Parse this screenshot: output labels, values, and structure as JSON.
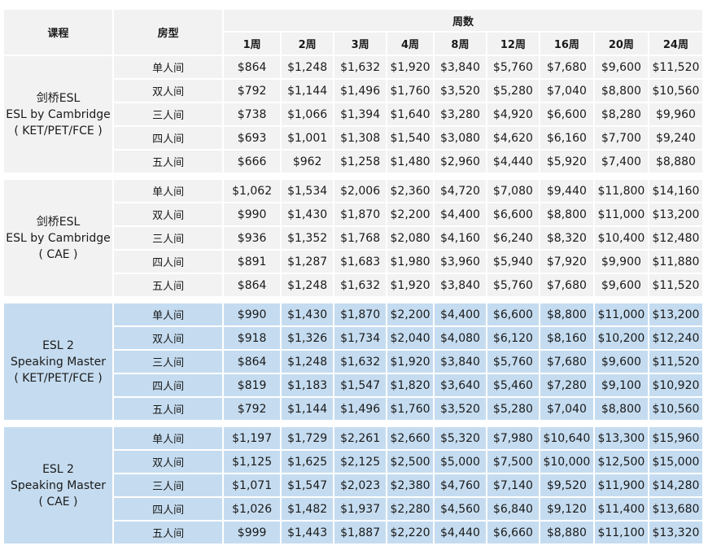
{
  "header": {
    "course_label": "课程",
    "room_label": "房型",
    "weeks_label": "周数",
    "weeks": [
      "1周",
      "2周",
      "3周",
      "4周",
      "8周",
      "12周",
      "16周",
      "20周",
      "24周"
    ]
  },
  "room_types": [
    "单人间",
    "双人间",
    "三人间",
    "四人间",
    "五人间"
  ],
  "groups": [
    {
      "course_lines": [
        "剑桥ESL",
        "ESL by Cambridge",
        "( KET/PET/FCE )"
      ],
      "rows": [
        [
          "$864",
          "$1,248",
          "$1,632",
          "$1,920",
          "$3,840",
          "$5,760",
          "$7,680",
          "$9,600",
          "$11,520"
        ],
        [
          "$792",
          "$1,144",
          "$1,496",
          "$1,760",
          "$3,520",
          "$5,280",
          "$7,040",
          "$8,800",
          "$10,560"
        ],
        [
          "$738",
          "$1,066",
          "$1,394",
          "$1,640",
          "$3,280",
          "$4,920",
          "$6,600",
          "$8,280",
          "$9,960"
        ],
        [
          "$693",
          "$1,001",
          "$1,308",
          "$1,540",
          "$3,080",
          "$4,620",
          "$6,160",
          "$7,700",
          "$9,240"
        ],
        [
          "$666",
          "$962",
          "$1,258",
          "$1,480",
          "$2,960",
          "$4,440",
          "$5,920",
          "$7,400",
          "$8,880"
        ]
      ]
    },
    {
      "course_lines": [
        "剑桥ESL",
        "ESL by Cambridge",
        "( CAE )"
      ],
      "rows": [
        [
          "$1,062",
          "$1,534",
          "$2,006",
          "$2,360",
          "$4,720",
          "$7,080",
          "$9,440",
          "$11,800",
          "$14,160"
        ],
        [
          "$990",
          "$1,430",
          "$1,870",
          "$2,200",
          "$4,400",
          "$6,600",
          "$8,800",
          "$11,000",
          "$13,200"
        ],
        [
          "$936",
          "$1,352",
          "$1,768",
          "$2,080",
          "$4,160",
          "$6,240",
          "$8,320",
          "$10,400",
          "$12,480"
        ],
        [
          "$891",
          "$1,287",
          "$1,683",
          "$1,980",
          "$3,960",
          "$5,940",
          "$7,920",
          "$9,900",
          "$11,880"
        ],
        [
          "$864",
          "$1,248",
          "$1,632",
          "$1,920",
          "$3,840",
          "$5,760",
          "$7,680",
          "$9,600",
          "$11,520"
        ]
      ]
    },
    {
      "course_lines": [
        "ESL 2",
        "Speaking Master",
        "( KET/PET/FCE )"
      ],
      "rows": [
        [
          "$990",
          "$1,430",
          "$1,870",
          "$2,200",
          "$4,400",
          "$6,600",
          "$8,800",
          "$11,000",
          "$13,200"
        ],
        [
          "$918",
          "$1,326",
          "$1,734",
          "$2,040",
          "$4,080",
          "$6,120",
          "$8,160",
          "$10,200",
          "$12,240"
        ],
        [
          "$864",
          "$1,248",
          "$1,632",
          "$1,920",
          "$3,840",
          "$5,760",
          "$7,680",
          "$9,600",
          "$11,520"
        ],
        [
          "$819",
          "$1,183",
          "$1,547",
          "$1,820",
          "$3,640",
          "$5,460",
          "$7,280",
          "$9,100",
          "$10,920"
        ],
        [
          "$792",
          "$1,144",
          "$1,496",
          "$1,760",
          "$3,520",
          "$5,280",
          "$7,040",
          "$8,800",
          "$10,560"
        ]
      ]
    },
    {
      "course_lines": [
        "ESL 2",
        "Speaking Master",
        "( CAE )"
      ],
      "rows": [
        [
          "$1,197",
          "$1,729",
          "$2,261",
          "$2,660",
          "$5,320",
          "$7,980",
          "$10,640",
          "$13,300",
          "$15,960"
        ],
        [
          "$1,125",
          "$1,625",
          "$2,125",
          "$2,500",
          "$5,000",
          "$7,500",
          "$10,000",
          "$12,500",
          "$15,000"
        ],
        [
          "$1,071",
          "$1,547",
          "$2,023",
          "$2,380",
          "$4,760",
          "$7,140",
          "$9,520",
          "$11,900",
          "$14,280"
        ],
        [
          "$1,026",
          "$1,482",
          "$1,937",
          "$2,280",
          "$4,560",
          "$6,840",
          "$9,120",
          "$11,400",
          "$13,680"
        ],
        [
          "$999",
          "$1,443",
          "$1,887",
          "$2,220",
          "$4,440",
          "$6,660",
          "$8,880",
          "$11,100",
          "$13,320"
        ]
      ]
    }
  ]
}
